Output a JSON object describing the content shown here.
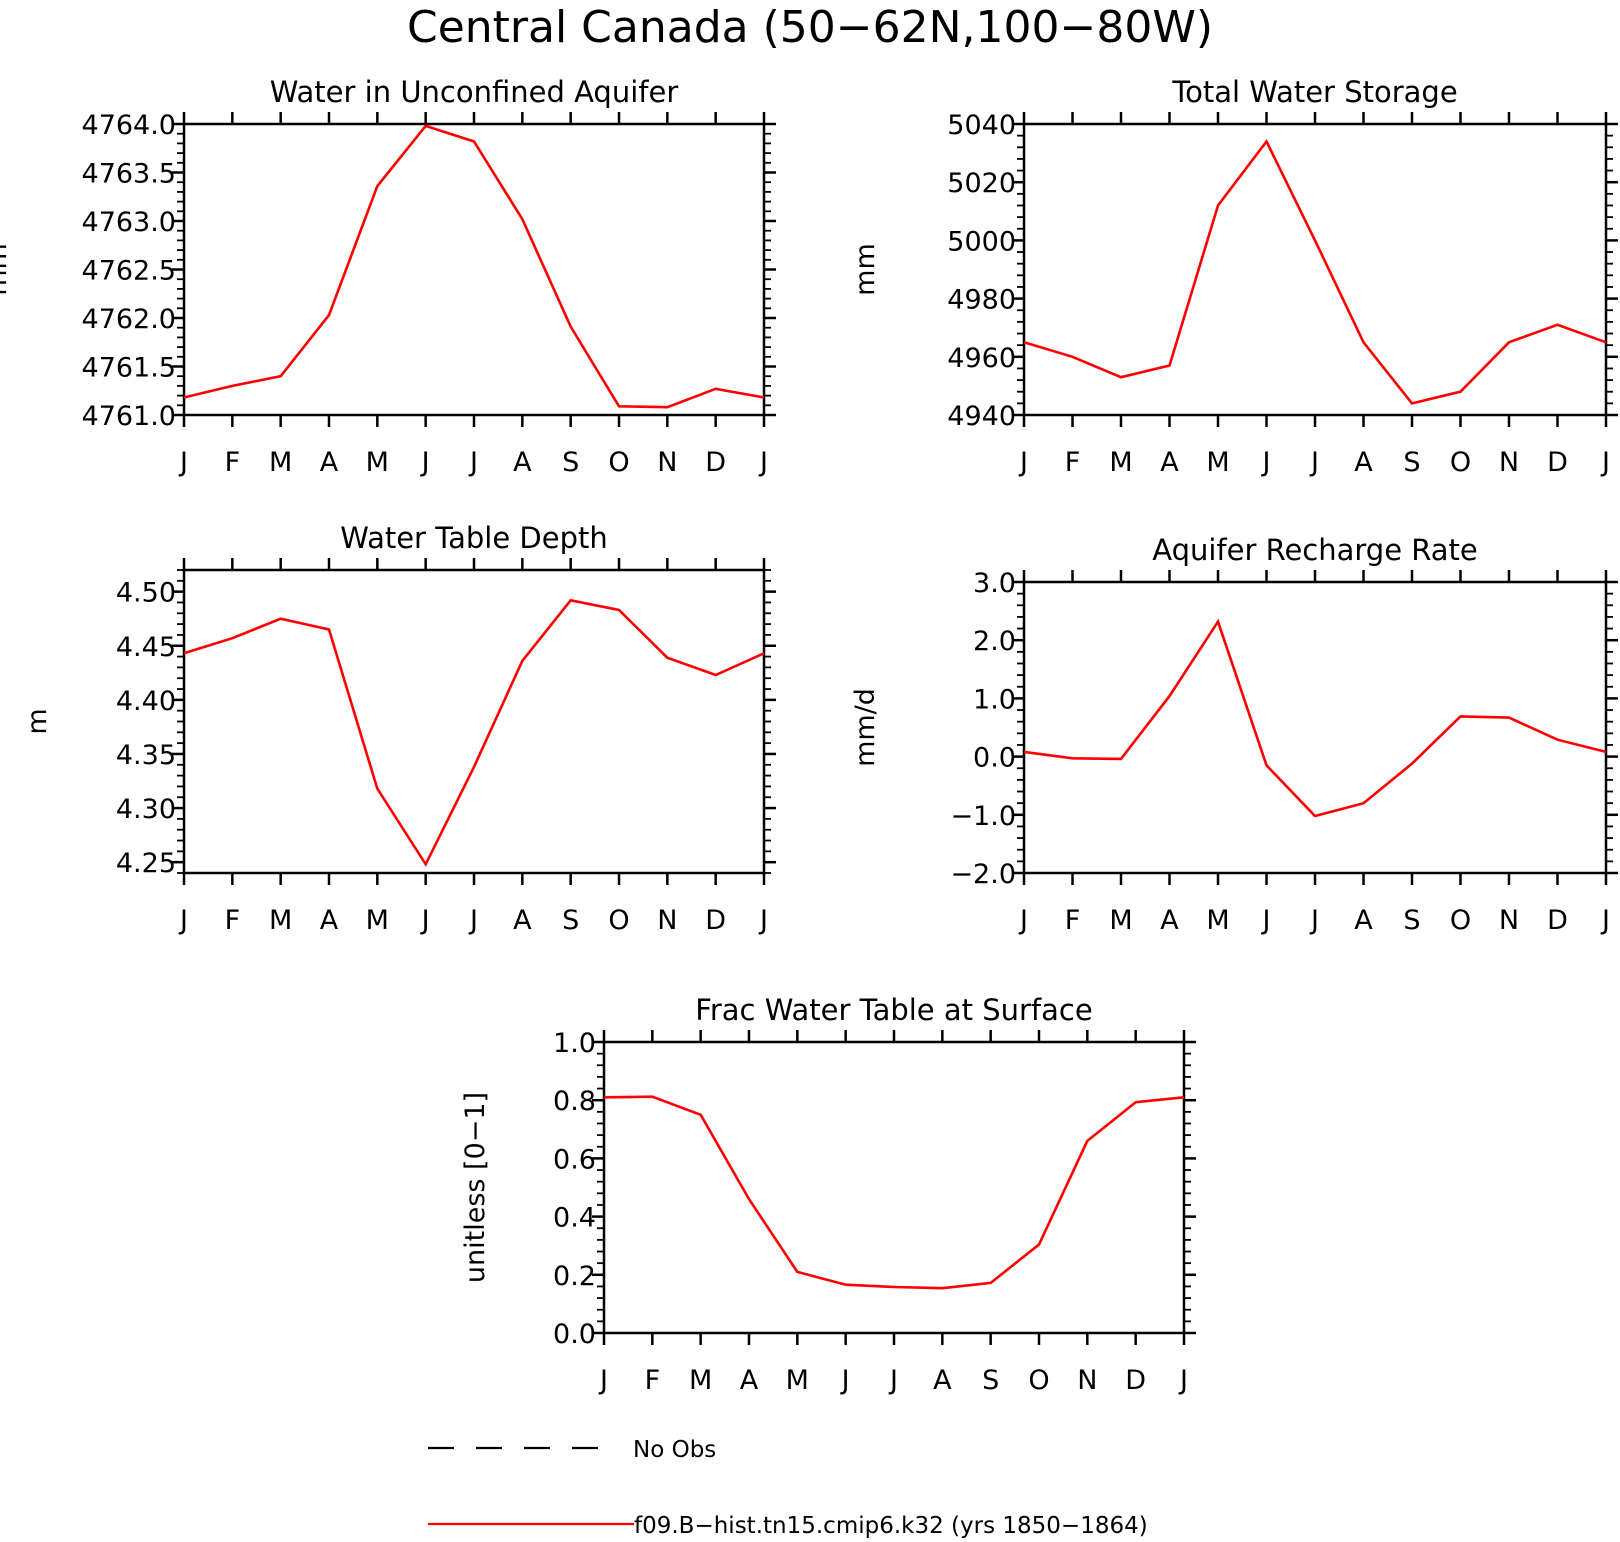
{
  "figure": {
    "title": "Central Canada (50−62N,100−80W)"
  },
  "legend": {
    "items": [
      {
        "label": "No Obs",
        "style": "dashed",
        "color": "#000000"
      },
      {
        "label": "f09.B−hist.tn15.cmip6.k32 (yrs 1850−1864)",
        "style": "solid",
        "color": "#ff0000"
      }
    ]
  },
  "colors": {
    "series": "#ff0000",
    "axes": "#000000"
  },
  "chart_data": [
    {
      "type": "line",
      "title": "Water in Unconfined Aquifer",
      "ylabel": "mm",
      "categories": [
        "J",
        "F",
        "M",
        "A",
        "M",
        "J",
        "J",
        "A",
        "S",
        "O",
        "N",
        "D",
        "J"
      ],
      "ylim": [
        4761.0,
        4764.0
      ],
      "yticks": [
        "4761.0",
        "4761.5",
        "4762.0",
        "4762.5",
        "4763.0",
        "4763.5",
        "4764.0"
      ],
      "series": [
        {
          "name": "f09.B−hist.tn15.cmip6.k32 (yrs 1850−1864)",
          "values": [
            4761.18,
            4761.3,
            4761.4,
            4762.03,
            4763.36,
            4763.98,
            4763.82,
            4763.02,
            4761.91,
            4761.09,
            4761.08,
            4761.27,
            4761.18
          ]
        }
      ]
    },
    {
      "type": "line",
      "title": "Total Water Storage",
      "ylabel": "mm",
      "categories": [
        "J",
        "F",
        "M",
        "A",
        "M",
        "J",
        "J",
        "A",
        "S",
        "O",
        "N",
        "D",
        "J"
      ],
      "ylim": [
        4940,
        5040
      ],
      "yticks": [
        "4940",
        "4960",
        "4980",
        "5000",
        "5020",
        "5040"
      ],
      "series": [
        {
          "name": "f09.B−hist.tn15.cmip6.k32 (yrs 1850−1864)",
          "values": [
            4965,
            4960,
            4953,
            4957,
            5012,
            5034,
            5000,
            4965,
            4944,
            4948,
            4965,
            4971,
            4965
          ]
        }
      ]
    },
    {
      "type": "line",
      "title": "Water Table Depth",
      "ylabel": "m",
      "categories": [
        "J",
        "F",
        "M",
        "A",
        "M",
        "J",
        "J",
        "A",
        "S",
        "O",
        "N",
        "D",
        "J"
      ],
      "ylim": [
        4.24,
        4.52
      ],
      "yticks": [
        "4.25",
        "4.30",
        "4.35",
        "4.40",
        "4.45",
        "4.50"
      ],
      "series": [
        {
          "name": "f09.B−hist.tn15.cmip6.k32 (yrs 1850−1864)",
          "values": [
            4.443,
            4.457,
            4.475,
            4.465,
            4.318,
            4.248,
            4.338,
            4.436,
            4.492,
            4.483,
            4.439,
            4.423,
            4.443
          ]
        }
      ]
    },
    {
      "type": "line",
      "title": "Aquifer Recharge Rate",
      "ylabel": "mm/d",
      "categories": [
        "J",
        "F",
        "M",
        "A",
        "M",
        "J",
        "J",
        "A",
        "S",
        "O",
        "N",
        "D",
        "J"
      ],
      "ylim": [
        -2.0,
        3.0
      ],
      "yticks": [
        "−2.0",
        "−1.0",
        "0.0",
        "1.0",
        "2.0",
        "3.0"
      ],
      "series": [
        {
          "name": "f09.B−hist.tn15.cmip6.k32 (yrs 1850−1864)",
          "values": [
            0.08,
            -0.03,
            -0.04,
            1.04,
            2.32,
            -0.15,
            -1.02,
            -0.8,
            -0.12,
            0.69,
            0.67,
            0.29,
            0.08
          ]
        }
      ]
    },
    {
      "type": "line",
      "title": "Frac Water Table at Surface",
      "ylabel": "unitless [0−1]",
      "categories": [
        "J",
        "F",
        "M",
        "A",
        "M",
        "J",
        "J",
        "A",
        "S",
        "O",
        "N",
        "D",
        "J"
      ],
      "ylim": [
        0.0,
        1.0
      ],
      "yticks": [
        "0.0",
        "0.2",
        "0.4",
        "0.6",
        "0.8",
        "1.0"
      ],
      "series": [
        {
          "name": "f09.B−hist.tn15.cmip6.k32 (yrs 1850−1864)",
          "values": [
            0.81,
            0.812,
            0.75,
            0.46,
            0.21,
            0.166,
            0.158,
            0.154,
            0.172,
            0.304,
            0.66,
            0.793,
            0.81
          ]
        }
      ]
    }
  ]
}
